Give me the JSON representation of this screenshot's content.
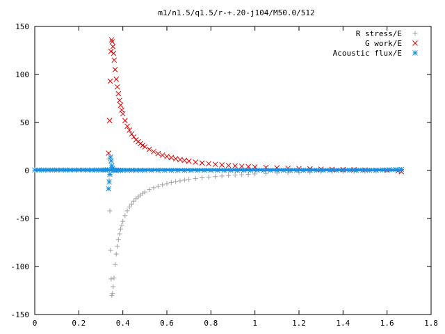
{
  "chart_data": {
    "type": "scatter",
    "title": "m1/n1.5/q1.5/r-+.20-j104/M50.0/512",
    "xlabel": "",
    "ylabel": "",
    "xlim": [
      0,
      1.8
    ],
    "ylim": [
      -150,
      150
    ],
    "x_ticks": [
      0,
      0.2,
      0.4,
      0.6,
      0.8,
      1,
      1.2,
      1.4,
      1.6,
      1.8
    ],
    "x_tick_labels": [
      "0",
      "0.2",
      "0.4",
      "0.6",
      "0.8",
      "1",
      "1.2",
      "1.4",
      "1.6",
      "1.8"
    ],
    "y_ticks": [
      -150,
      -100,
      -50,
      0,
      50,
      100,
      150
    ],
    "y_tick_labels": [
      "-150",
      "-100",
      "-50",
      "0",
      "50",
      "100",
      "150"
    ],
    "grid": false,
    "legend_position": "top-right",
    "series": [
      {
        "name": "R stress/E",
        "marker": "plus",
        "color": "#a0a0a0",
        "x": [
          0.335,
          0.338,
          0.341,
          0.344,
          0.347,
          0.35,
          0.353,
          0.356,
          0.36,
          0.365,
          0.37,
          0.375,
          0.38,
          0.385,
          0.39,
          0.395,
          0.4,
          0.41,
          0.42,
          0.43,
          0.44,
          0.45,
          0.46,
          0.47,
          0.48,
          0.49,
          0.5,
          0.52,
          0.54,
          0.56,
          0.58,
          0.6,
          0.62,
          0.64,
          0.66,
          0.68,
          0.7,
          0.73,
          0.76,
          0.79,
          0.82,
          0.85,
          0.88,
          0.91,
          0.94,
          0.97,
          1.0,
          1.05,
          1.1,
          1.15,
          1.2,
          1.25,
          1.3,
          1.35,
          1.4,
          1.45,
          1.5,
          1.55,
          1.6,
          1.65,
          1.665
        ],
        "y": [
          12,
          -10,
          -42,
          -83,
          -113,
          -130,
          -128,
          -121,
          -112,
          -98,
          -87,
          -79,
          -72,
          -66,
          -61,
          -57,
          -53,
          -47,
          -42,
          -38,
          -35,
          -32,
          -29.5,
          -27.5,
          -25.5,
          -24,
          -22.5,
          -20,
          -18,
          -16.3,
          -15,
          -13.7,
          -12.6,
          -11.6,
          -10.8,
          -10,
          -9.3,
          -8.4,
          -7.6,
          -6.9,
          -6.3,
          -5.7,
          -5.2,
          -4.8,
          -4.4,
          -4,
          -3.6,
          -3.1,
          -2.7,
          -2.3,
          -2,
          -1.7,
          -1.4,
          -1.2,
          -1,
          -0.8,
          -0.6,
          -0.4,
          -0.2,
          0.2,
          0.5
        ]
      },
      {
        "name": "G work/E",
        "marker": "cross",
        "color": "#e00000",
        "x": [
          0.335,
          0.34,
          0.343,
          0.346,
          0.349,
          0.352,
          0.355,
          0.358,
          0.361,
          0.365,
          0.37,
          0.375,
          0.38,
          0.385,
          0.39,
          0.395,
          0.4,
          0.41,
          0.42,
          0.43,
          0.44,
          0.45,
          0.46,
          0.47,
          0.48,
          0.49,
          0.5,
          0.52,
          0.54,
          0.56,
          0.58,
          0.6,
          0.62,
          0.64,
          0.66,
          0.68,
          0.7,
          0.73,
          0.76,
          0.79,
          0.82,
          0.85,
          0.88,
          0.91,
          0.94,
          0.97,
          1.0,
          1.05,
          1.1,
          1.15,
          1.2,
          1.25,
          1.3,
          1.35,
          1.4,
          1.45,
          1.5,
          1.55,
          1.6,
          1.65,
          1.665
        ],
        "y": [
          18,
          52,
          93,
          124,
          136,
          134,
          129,
          122,
          115,
          105,
          95,
          87,
          80,
          73,
          68,
          63,
          59,
          52,
          46,
          42,
          38,
          35,
          32,
          30,
          28,
          26.2,
          24.6,
          22,
          19.6,
          17.6,
          16,
          14.6,
          13.4,
          12.3,
          11.3,
          10.5,
          9.7,
          8.7,
          7.8,
          7.1,
          6.4,
          5.8,
          5.3,
          4.8,
          4.4,
          4,
          3.6,
          3.1,
          2.7,
          2.3,
          2,
          1.7,
          1.4,
          1.2,
          1,
          0.8,
          0.6,
          0.4,
          0.2,
          -0.4,
          -1.2
        ]
      },
      {
        "name": "Acoustic flux/E",
        "marker": "star",
        "color": "#1a8fe0",
        "x": [
          0,
          0.02,
          0.04,
          0.06,
          0.08,
          0.1,
          0.12,
          0.14,
          0.16,
          0.18,
          0.2,
          0.22,
          0.24,
          0.26,
          0.28,
          0.3,
          0.31,
          0.32,
          0.33,
          0.335,
          0.338,
          0.341,
          0.344,
          0.347,
          0.35,
          0.353,
          0.356,
          0.36,
          0.365,
          0.37,
          0.38,
          0.39,
          0.4,
          0.42,
          0.44,
          0.46,
          0.48,
          0.5,
          0.53,
          0.56,
          0.59,
          0.62,
          0.65,
          0.68,
          0.71,
          0.74,
          0.77,
          0.8,
          0.83,
          0.86,
          0.89,
          0.92,
          0.95,
          0.98,
          1.01,
          1.04,
          1.07,
          1.1,
          1.13,
          1.16,
          1.19,
          1.22,
          1.25,
          1.28,
          1.31,
          1.34,
          1.37,
          1.4,
          1.43,
          1.46,
          1.49,
          1.52,
          1.55,
          1.58,
          1.61,
          1.64,
          1.665
        ],
        "y": [
          0.5,
          0.5,
          0.5,
          0.5,
          0.5,
          0.5,
          0.5,
          0.5,
          0.5,
          0.5,
          0.5,
          0.5,
          0.5,
          0.5,
          0.5,
          0.5,
          0.5,
          0.6,
          0.8,
          -19,
          -12,
          -4,
          14,
          10,
          5,
          2,
          0.8,
          0.3,
          0.3,
          0.3,
          0.3,
          0.3,
          0.3,
          0.3,
          0.3,
          0.3,
          0.3,
          0.3,
          0.3,
          0.3,
          0.3,
          0.3,
          0.3,
          0.3,
          0.3,
          0.3,
          0.3,
          0.3,
          0.3,
          0.3,
          0.3,
          0.3,
          0.3,
          0.3,
          0.3,
          0.3,
          0.3,
          0.3,
          0.3,
          0.3,
          0.3,
          0.3,
          0.3,
          0.3,
          0.3,
          0.3,
          0.3,
          0.3,
          0.3,
          0.3,
          0.3,
          0.3,
          0.3,
          0.6,
          0.8,
          1,
          1.2
        ]
      }
    ]
  }
}
